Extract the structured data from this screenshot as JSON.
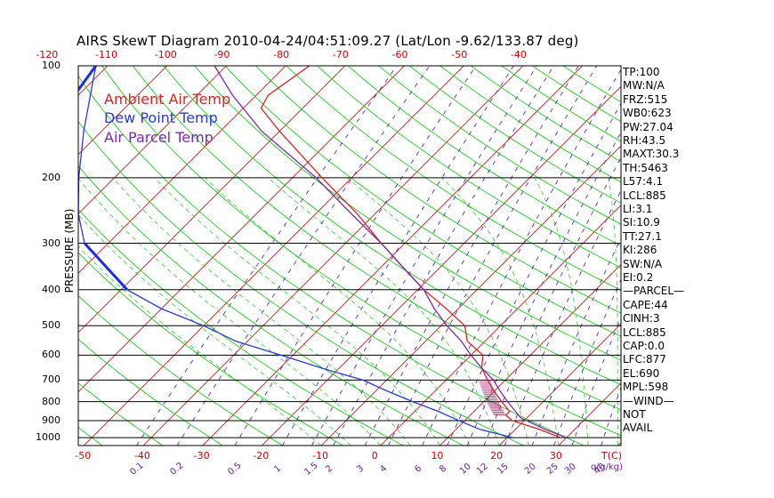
{
  "title": "AIRS SkewT Diagram 2010-04-24/04:51:09.27 (Lat/Lon -9.62/133.87 deg)",
  "legend": [
    {
      "label": "Ambient Air Temp",
      "color": "#dd2222"
    },
    {
      "label": "Dew Point Temp",
      "color": "#2a3ad8"
    },
    {
      "label": "Air Parcel Temp",
      "color": "#7a2aa8"
    }
  ],
  "colors": {
    "isotherm": "#cc0000",
    "dry_adiabat": "#00cc00",
    "moist_adiabat": "#33cc33",
    "mixing_ratio": "#5a2ab0",
    "isobar": "#000000",
    "dewpoint_thick": "#1a2aee"
  },
  "chart_data": {
    "type": "line",
    "skew_t": true,
    "ylabel": "PRESSURE (MB)",
    "y_scale": "log",
    "y_inverted": true,
    "ylim": [
      1050,
      100
    ],
    "pressure_ticks": [
      100,
      200,
      300,
      400,
      500,
      600,
      700,
      800,
      900,
      1000
    ],
    "top_temp_ticks": [
      "-120",
      "-110",
      "-100",
      "-90",
      "-80",
      "-70",
      "-60",
      "-50",
      "-40"
    ],
    "bottom_temp_ticks": [
      "-50",
      "-40",
      "-30",
      "-20",
      "-10",
      "0",
      "10",
      "20",
      "30"
    ],
    "bottom_temp_axis_label": "T(C)",
    "mixing_ratio_ticks": [
      "0.1",
      "0.2",
      "0.5",
      "1",
      "1.5",
      "2",
      "3",
      "4",
      "6",
      "8",
      "10",
      "12",
      "15",
      "20",
      "25",
      "30",
      "40"
    ],
    "mixing_ratio_axis_label": "q(g/kg)",
    "series": [
      {
        "name": "Ambient Air Temp",
        "pressure": [
          1000,
          950,
          900,
          870,
          850,
          800,
          750,
          700,
          650,
          600,
          550,
          500,
          450,
          400,
          350,
          300,
          250,
          200,
          150,
          130,
          120,
          100
        ],
        "temperature": [
          29,
          24,
          18,
          16,
          16,
          13,
          10,
          7,
          4,
          2,
          -3,
          -6,
          -12,
          -19,
          -26,
          -34,
          -43,
          -55,
          -70,
          -77,
          -78,
          -76
        ]
      },
      {
        "name": "Dew Point Temp",
        "pressure": [
          1000,
          950,
          900,
          850,
          800,
          750,
          700,
          650,
          600,
          550,
          500,
          450,
          400,
          300,
          250,
          200,
          150,
          100
        ],
        "temperature": [
          21,
          14,
          9,
          4,
          -2,
          -8,
          -14,
          -23,
          -32,
          -42,
          -50,
          -60,
          -69,
          -84,
          -90,
          -96,
          -103,
          -112
        ]
      },
      {
        "name": "Air Parcel Temp",
        "pressure": [
          1000,
          950,
          885,
          850,
          800,
          750,
          700,
          650,
          600,
          550,
          500,
          450,
          400,
          350,
          300,
          250,
          200,
          150,
          120,
          100
        ],
        "temperature": [
          30,
          25,
          19,
          17,
          14,
          11,
          8,
          4,
          0,
          -4,
          -9,
          -14,
          -19,
          -26,
          -34,
          -44,
          -56,
          -73,
          -84,
          -92
        ]
      }
    ]
  },
  "indices": [
    "TP:100",
    "MW:N/A",
    "FRZ:515",
    "WB0:623",
    "PW:27.04",
    "RH:43.5",
    "MAXT:30.3",
    "TH:5463",
    "L57:4.1",
    "LCL:885",
    "LI:3.1",
    "SI:10.9",
    "TT:27.1",
    "KI:286",
    "SW:N/A",
    "EI:0.2",
    "—PARCEL—",
    "CAPE:44",
    "CINH:3",
    "LCL:885",
    "CAP:0.0",
    "LFC:877",
    "EL:690",
    "MPL:598",
    "—WIND—",
    "NOT",
    "AVAIL"
  ]
}
